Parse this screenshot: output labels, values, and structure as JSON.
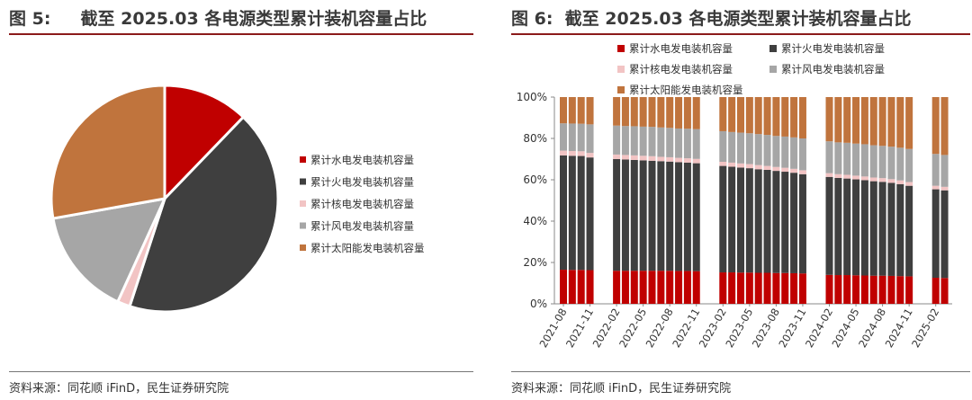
{
  "left": {
    "fig_label": "图 5:",
    "title": "截至 2025.03 各电源类型累计装机容量占比",
    "source": "资料来源：同花顺 iFinD，民生证券研究院"
  },
  "right": {
    "fig_label": "图 6:",
    "title": "截至 2025.03 各电源类型累计装机容量占比",
    "source": "资料来源：同花顺 iFinD，民生证券研究院"
  },
  "chart_data": [
    {
      "type": "pie",
      "categories": [
        "累计水电发电装机容量",
        "累计火电发电装机容量",
        "累计核电发电装机容量",
        "累计风电发电装机容量",
        "累计太阳能发电装机容量"
      ],
      "values": [
        12.2,
        42.8,
        1.8,
        15.4,
        27.8
      ],
      "colors": [
        "#c00000",
        "#3f3f3f",
        "#f2c4c4",
        "#a6a6a6",
        "#c0743d"
      ],
      "legend": "right"
    },
    {
      "type": "bar",
      "stacked": true,
      "ylim": [
        0,
        100
      ],
      "yticks": [
        "0%",
        "20%",
        "40%",
        "60%",
        "80%",
        "100%"
      ],
      "grid": false,
      "legend": "top",
      "x": [
        "2021-08",
        "2021-09",
        "2021-10",
        "2021-11",
        "2021-12",
        "2022-01",
        "2022-02",
        "2022-03",
        "2022-04",
        "2022-05",
        "2022-06",
        "2022-07",
        "2022-08",
        "2022-09",
        "2022-10",
        "2022-11",
        "2022-12",
        "2023-01",
        "2023-02",
        "2023-03",
        "2023-04",
        "2023-05",
        "2023-06",
        "2023-07",
        "2023-08",
        "2023-09",
        "2023-10",
        "2023-11",
        "2023-12",
        "2024-01",
        "2024-02",
        "2024-03",
        "2024-04",
        "2024-05",
        "2024-06",
        "2024-07",
        "2024-08",
        "2024-09",
        "2024-10",
        "2024-11",
        "2024-12",
        "2025-01",
        "2025-02",
        "2025-03"
      ],
      "x_tick_labels": [
        "2021-08",
        "2021-11",
        "2022-02",
        "2022-05",
        "2022-08",
        "2022-11",
        "2023-02",
        "2023-05",
        "2023-08",
        "2023-11",
        "2024-02",
        "2024-05",
        "2024-08",
        "2024-11",
        "2025-02"
      ],
      "series": [
        {
          "name": "累计水电发电装机容量",
          "color": "#c00000",
          "values": [
            16.5,
            16.4,
            16.4,
            16.3,
            null,
            null,
            16.0,
            16.0,
            16.0,
            16.0,
            16.0,
            16.0,
            16.0,
            15.9,
            15.9,
            15.8,
            null,
            null,
            15.2,
            15.2,
            15.1,
            15.1,
            15.0,
            15.0,
            14.9,
            14.9,
            14.8,
            14.7,
            null,
            null,
            14.0,
            13.9,
            13.9,
            13.8,
            13.7,
            13.6,
            13.6,
            13.5,
            13.4,
            13.3,
            null,
            null,
            12.6,
            12.5
          ]
        },
        {
          "name": "累计火电发电装机容量",
          "color": "#3f3f3f",
          "values": [
            55.3,
            55.2,
            55.1,
            54.5,
            null,
            null,
            54.0,
            53.8,
            53.6,
            53.4,
            53.2,
            53.0,
            52.8,
            52.6,
            52.4,
            52.2,
            null,
            null,
            51.5,
            51.1,
            50.8,
            50.5,
            50.1,
            49.8,
            49.4,
            49.0,
            48.6,
            48.0,
            null,
            null,
            47.4,
            47.0,
            46.7,
            46.4,
            46.1,
            45.7,
            45.4,
            45.0,
            44.5,
            43.8,
            null,
            null,
            42.8,
            42.4
          ]
        },
        {
          "name": "累计核电发电装机容量",
          "color": "#f2c4c4",
          "values": [
            2.3,
            2.3,
            2.3,
            2.2,
            null,
            null,
            2.2,
            2.2,
            2.2,
            2.2,
            2.2,
            2.1,
            2.1,
            2.1,
            2.1,
            2.1,
            null,
            null,
            2.0,
            2.0,
            2.0,
            2.0,
            2.0,
            1.9,
            1.9,
            1.9,
            1.9,
            1.9,
            null,
            null,
            1.8,
            1.8,
            1.8,
            1.8,
            1.8,
            1.8,
            1.8,
            1.8,
            1.8,
            1.8,
            null,
            null,
            1.7,
            1.7
          ]
        },
        {
          "name": "累计风电发电装机容量",
          "color": "#a6a6a6",
          "values": [
            13.2,
            13.3,
            13.3,
            13.8,
            null,
            null,
            14.0,
            14.0,
            14.1,
            14.1,
            14.2,
            14.2,
            14.2,
            14.2,
            14.3,
            14.4,
            null,
            null,
            14.8,
            14.8,
            14.9,
            14.9,
            15.0,
            15.0,
            15.0,
            15.1,
            15.2,
            15.4,
            null,
            null,
            15.4,
            15.4,
            15.5,
            15.5,
            15.6,
            15.6,
            15.6,
            15.7,
            15.8,
            16.0,
            null,
            null,
            15.4,
            15.4
          ]
        },
        {
          "name": "累计太阳能发电装机容量",
          "color": "#c0743d",
          "values": [
            12.7,
            12.8,
            12.9,
            13.2,
            null,
            null,
            13.8,
            14.0,
            14.1,
            14.3,
            14.4,
            14.7,
            14.9,
            15.2,
            15.3,
            15.5,
            null,
            null,
            16.5,
            16.9,
            17.2,
            17.5,
            17.9,
            18.3,
            18.8,
            19.1,
            19.5,
            20.0,
            null,
            null,
            21.4,
            21.9,
            22.1,
            22.5,
            22.8,
            23.3,
            23.6,
            24.0,
            24.5,
            25.1,
            null,
            null,
            27.5,
            28.0
          ]
        }
      ]
    }
  ]
}
